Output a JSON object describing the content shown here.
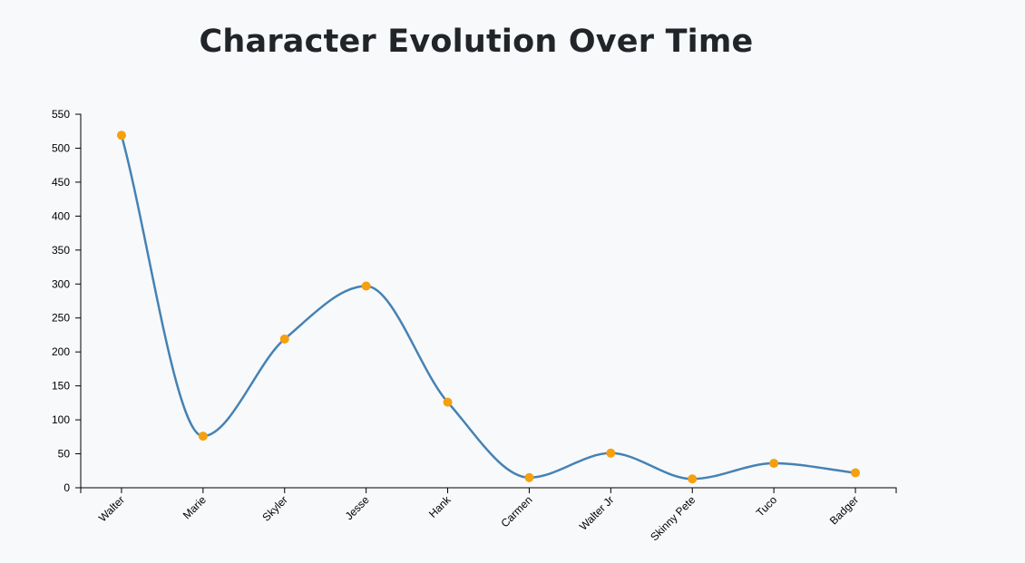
{
  "chart_data": {
    "type": "line",
    "title": "Character Evolution Over Time",
    "xlabel": "",
    "ylabel": "",
    "categories": [
      "Walter",
      "Marie",
      "Skyler",
      "Jesse",
      "Hank",
      "Carmen",
      "Walter Jr",
      "Skinny Pete",
      "Tuco",
      "Badger"
    ],
    "series": [
      {
        "values": [
          519,
          76,
          219,
          297,
          126,
          15,
          51,
          13,
          36,
          22
        ]
      }
    ],
    "ylim": [
      0,
      550
    ],
    "yticks": [
      0,
      50,
      100,
      150,
      200,
      250,
      300,
      350,
      400,
      450,
      500,
      550
    ],
    "grid": false,
    "curve": "smooth",
    "line_color": "#4682b4",
    "point_color": "#f5a00f"
  }
}
